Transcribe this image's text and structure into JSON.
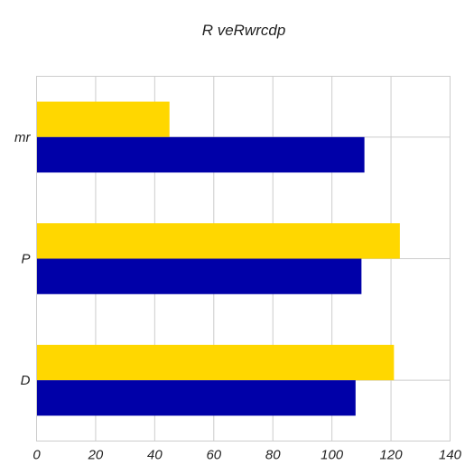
{
  "chart_data": {
    "type": "bar",
    "orientation": "horizontal",
    "title": "R veRwrcdp",
    "xlabel": "",
    "ylabel": "",
    "categories": [
      "mr",
      "P",
      "D"
    ],
    "series": [
      {
        "color": "#FFD700",
        "values": [
          45,
          123,
          121
        ]
      },
      {
        "color": "#0000A8",
        "values": [
          111,
          110,
          108
        ]
      }
    ],
    "xlim": [
      0,
      140
    ],
    "xticks": [
      0,
      20,
      40,
      60,
      80,
      100,
      120,
      140
    ],
    "grid": true,
    "legend": "none"
  }
}
